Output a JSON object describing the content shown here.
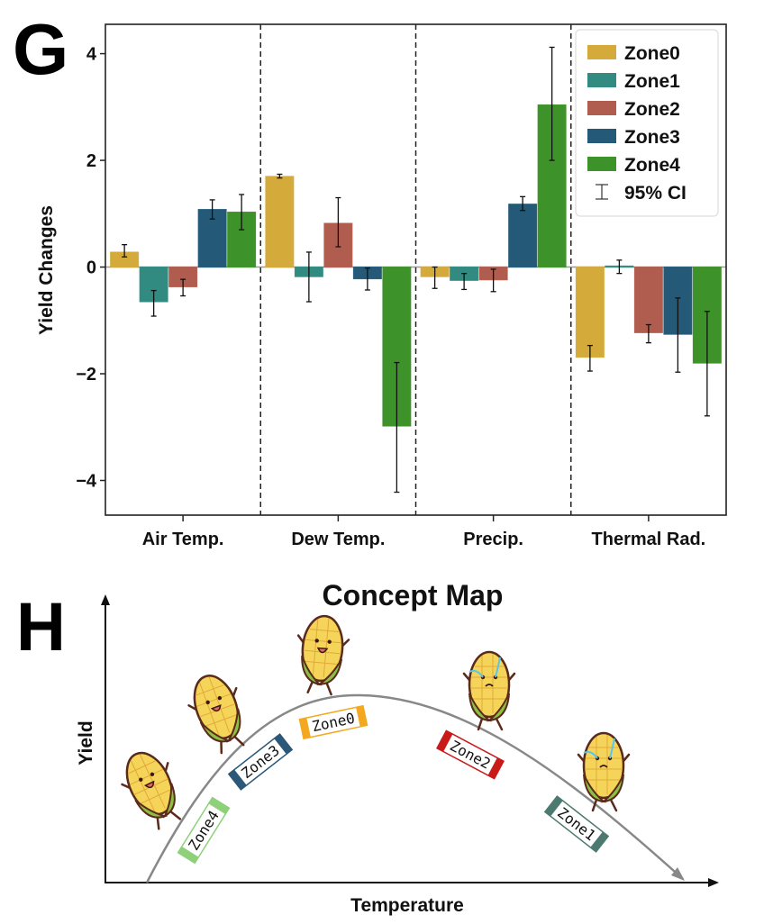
{
  "panel_g": {
    "letter": "G"
  },
  "panel_h": {
    "letter": "H",
    "title": "Concept Map",
    "xlabel": "Temperature",
    "ylabel": "Yield",
    "curve_tags": [
      {
        "label": "Zone4",
        "color": "#8fd07a"
      },
      {
        "label": "Zone3",
        "color": "#2b5878"
      },
      {
        "label": "Zone0",
        "color": "#f3a81f"
      },
      {
        "label": "Zone2",
        "color": "#c91a1a"
      },
      {
        "label": "Zone1",
        "color": "#4d7a70"
      }
    ],
    "mascots": [
      {
        "zone": "Zone4",
        "mood": "happy-jumping"
      },
      {
        "zone": "Zone3",
        "mood": "happy-jumping"
      },
      {
        "zone": "Zone0",
        "mood": "happy-sitting"
      },
      {
        "zone": "Zone2",
        "mood": "crying"
      },
      {
        "zone": "Zone1",
        "mood": "crying"
      }
    ]
  },
  "chart_data": {
    "type": "bar",
    "title": "",
    "xlabel": "",
    "ylabel": "Yield Changes",
    "ylim": [
      -4.65,
      4.55
    ],
    "yticks": [
      -4,
      -2,
      0,
      2,
      4
    ],
    "ytick_labels": [
      "−4",
      "−2",
      "0",
      "2",
      "4"
    ],
    "grid": false,
    "legend_position": "top-right",
    "categories": [
      "Air Temp.",
      "Dew Temp.",
      "Precip.",
      "Thermal Rad."
    ],
    "series": [
      {
        "name": "Zone0",
        "color": "#d4ab3b",
        "values": [
          0.28,
          1.7,
          -0.18,
          -1.69
        ],
        "ci_low": [
          0.19,
          1.67,
          -0.4,
          -1.95
        ],
        "ci_high": [
          0.42,
          1.74,
          0.0,
          -1.47
        ]
      },
      {
        "name": "Zone1",
        "color": "#318b80",
        "values": [
          -0.65,
          -0.18,
          -0.25,
          0.02
        ],
        "ci_low": [
          -0.92,
          -0.65,
          -0.42,
          -0.12
        ],
        "ci_high": [
          -0.44,
          0.28,
          -0.12,
          0.13
        ]
      },
      {
        "name": "Zone2",
        "color": "#b05d4f",
        "values": [
          -0.37,
          0.82,
          -0.24,
          -1.23
        ],
        "ci_low": [
          -0.54,
          0.38,
          -0.46,
          -1.42
        ],
        "ci_high": [
          -0.23,
          1.3,
          -0.04,
          -1.08
        ]
      },
      {
        "name": "Zone3",
        "color": "#245a78",
        "values": [
          1.08,
          -0.22,
          1.18,
          -1.26
        ],
        "ci_low": [
          0.9,
          -0.43,
          1.06,
          -1.97
        ],
        "ci_high": [
          1.26,
          -0.02,
          1.32,
          -0.58
        ]
      },
      {
        "name": "Zone4",
        "color": "#3e922a",
        "values": [
          1.03,
          -2.98,
          3.04,
          -1.8
        ],
        "ci_low": [
          0.7,
          -4.22,
          2.0,
          -2.79
        ],
        "ci_high": [
          1.36,
          -1.79,
          4.12,
          -0.83
        ]
      }
    ],
    "legend_entries": [
      "Zone0",
      "Zone1",
      "Zone2",
      "Zone3",
      "Zone4",
      "95% CI"
    ],
    "separators": "dashed lines between categories"
  }
}
